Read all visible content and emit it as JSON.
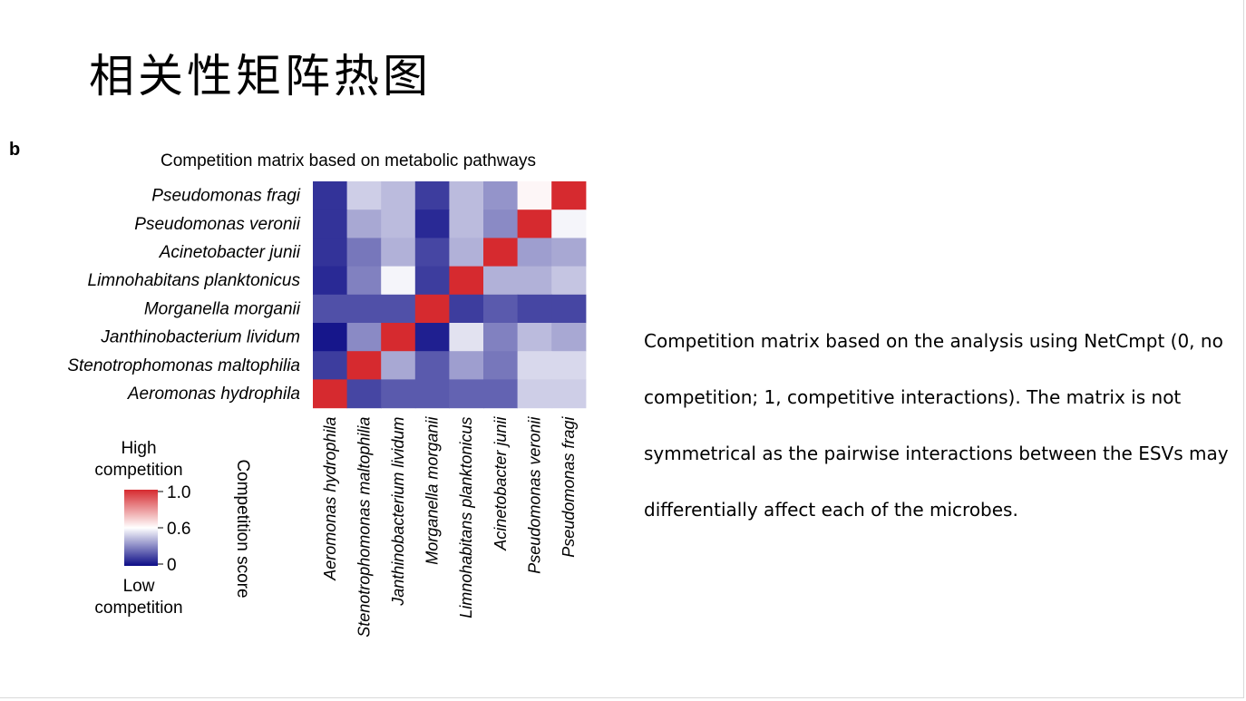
{
  "slide": {
    "title": "相关性矩阵热图",
    "panel_letter": "b",
    "description_lines": [
      "Competition matrix based on the analysis using NetCmpt (0, no",
      "competition; 1, competitive interactions). The matrix is not",
      "symmetrical as the pairwise interactions between the ESVs may",
      "differentially affect each of the microbes."
    ]
  },
  "chart_data": {
    "type": "heatmap",
    "title": "Competition matrix based on metabolic pathways",
    "rows": [
      "Pseudomonas fragi",
      "Pseudomonas veronii",
      "Acinetobacter junii",
      "Limnohabitans planktonicus",
      "Morganella morganii",
      "Janthinobacterium lividum",
      "Stenotrophomonas maltophilia",
      "Aeromonas hydrophila"
    ],
    "columns": [
      "Aeromonas hydrophila",
      "Stenotrophomonas maltophilia",
      "Janthinobacterium lividum",
      "Morganella morganii",
      "Limnohabitans planktonicus",
      "Acinetobacter junii",
      "Pseudomonas veronii",
      "Pseudomonas fragi"
    ],
    "values": [
      [
        0.08,
        0.4,
        0.36,
        0.1,
        0.36,
        0.28,
        0.52,
        1.0
      ],
      [
        0.08,
        0.32,
        0.36,
        0.06,
        0.36,
        0.26,
        1.0,
        0.48
      ],
      [
        0.08,
        0.22,
        0.34,
        0.12,
        0.34,
        1.0,
        0.3,
        0.32
      ],
      [
        0.06,
        0.24,
        0.48,
        0.1,
        1.0,
        0.34,
        0.34,
        0.38
      ],
      [
        0.14,
        0.14,
        0.14,
        1.0,
        0.1,
        0.16,
        0.12,
        0.12
      ],
      [
        0.02,
        0.26,
        1.0,
        0.04,
        0.44,
        0.24,
        0.36,
        0.32
      ],
      [
        0.1,
        1.0,
        0.32,
        0.16,
        0.3,
        0.22,
        0.42,
        0.42
      ],
      [
        1.0,
        0.12,
        0.16,
        0.16,
        0.18,
        0.18,
        0.4,
        0.4
      ]
    ],
    "colorbar": {
      "label": "Competition score",
      "ticks": [
        "1.0",
        "0.6",
        "0"
      ],
      "high_label_lines": [
        "High",
        "competition"
      ],
      "low_label_lines": [
        "Low",
        "competition"
      ],
      "colors": {
        "low": "#0c0c86",
        "mid": "#ffffff",
        "high": "#d62a2f"
      }
    }
  }
}
